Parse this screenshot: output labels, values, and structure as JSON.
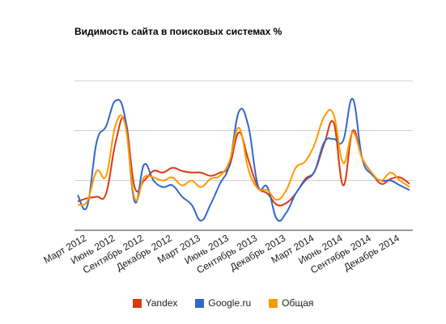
{
  "chart_data": {
    "type": "line",
    "title": "Видимость сайта в поисковых системах %",
    "xlabel": "",
    "ylabel": "",
    "x_tick_labels": [
      "Март 2012",
      "Июнь 2012",
      "Сентябрь 2012",
      "Декабрь 2012",
      "Март 2013",
      "Июнь 2013",
      "Сентябрь 2013",
      "Декабрь 2013",
      "Март 2014",
      "Июнь 2014",
      "Сентябрь 2014",
      "Декабрь 2014"
    ],
    "x": [
      "2012-02",
      "2012-03",
      "2012-04",
      "2012-05",
      "2012-06",
      "2012-07",
      "2012-08",
      "2012-09",
      "2012-10",
      "2012-11",
      "2012-12",
      "2013-01",
      "2013-02",
      "2013-03",
      "2013-04",
      "2013-05",
      "2013-06",
      "2013-07",
      "2013-08",
      "2013-09",
      "2013-10",
      "2013-11",
      "2013-12",
      "2014-01",
      "2014-02",
      "2014-03",
      "2014-04",
      "2014-05",
      "2014-06",
      "2014-07",
      "2014-08",
      "2014-09",
      "2014-10",
      "2014-11",
      "2014-12",
      "2015-01"
    ],
    "y_gridlines": 4,
    "grid": true,
    "legend_position": "bottom",
    "series": [
      {
        "name": "Yandex",
        "color": "#dc3912",
        "values": [
          0.8,
          1.0,
          1.1,
          1.3,
          4.5,
          5.9,
          1.7,
          2.1,
          2.7,
          2.6,
          2.9,
          2.7,
          2.6,
          2.6,
          2.4,
          2.6,
          3.0,
          5.1,
          3.4,
          1.7,
          1.3,
          0.6,
          0.7,
          1.3,
          2.2,
          2.7,
          4.4,
          5.7,
          1.8,
          5.2,
          3.5,
          2.6,
          1.9,
          2.2,
          2.3,
          1.9
        ]
      },
      {
        "name": "Google.ru",
        "color": "#3366cc",
        "values": [
          1.2,
          0.5,
          4.5,
          5.5,
          7.1,
          6.0,
          0.8,
          3.1,
          2.1,
          1.7,
          1.8,
          1.1,
          0.6,
          -0.4,
          0.6,
          1.9,
          3.1,
          6.4,
          5.5,
          1.8,
          1.7,
          -0.3,
          0.1,
          1.3,
          2.1,
          2.7,
          4.5,
          4.7,
          4.6,
          7.2,
          3.5,
          2.5,
          2.1,
          2.1,
          1.8,
          1.5
        ]
      },
      {
        "name": "Общая",
        "color": "#ff9900",
        "values": [
          0.6,
          0.8,
          2.7,
          2.4,
          5.6,
          5.6,
          1.0,
          2.3,
          2.3,
          2.1,
          2.3,
          1.8,
          2.1,
          1.7,
          2.2,
          2.4,
          3.3,
          5.4,
          2.8,
          1.6,
          1.5,
          0.9,
          1.5,
          2.9,
          3.3,
          4.4,
          6.1,
          6.2,
          3.2,
          5.1,
          3.5,
          2.6,
          2.1,
          2.6,
          2.1,
          1.7
        ]
      }
    ]
  }
}
